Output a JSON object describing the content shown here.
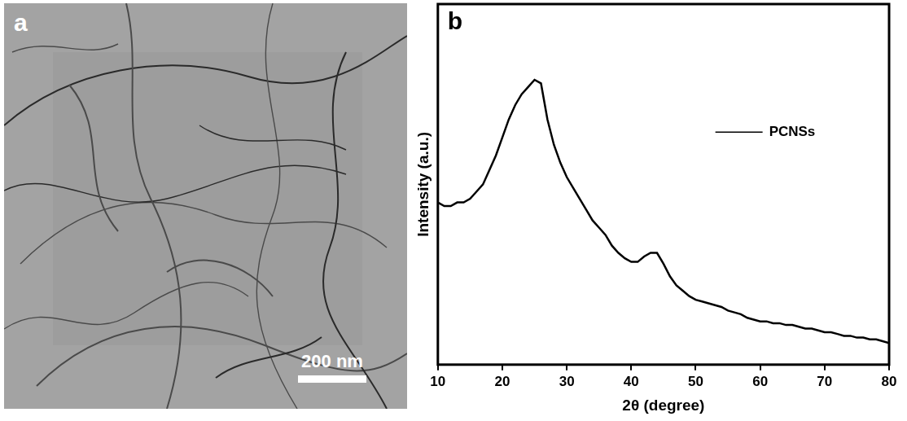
{
  "image_panel": {
    "panel_label": "a",
    "scale_bar_label": "200 nm"
  },
  "chart_data": {
    "type": "line",
    "panel_label": "b",
    "xlabel": "2θ (degree)",
    "ylabel": "Intensity (a.u.)",
    "x": [
      10,
      11,
      12,
      13,
      14,
      15,
      16,
      17,
      18,
      19,
      20,
      21,
      22,
      23,
      24,
      25,
      26,
      27,
      28,
      29,
      30,
      31,
      32,
      33,
      34,
      35,
      36,
      37,
      38,
      39,
      40,
      41,
      42,
      43,
      44,
      45,
      46,
      47,
      48,
      49,
      50,
      51,
      52,
      53,
      54,
      55,
      56,
      57,
      58,
      59,
      60,
      61,
      62,
      63,
      64,
      65,
      66,
      67,
      68,
      69,
      70,
      71,
      72,
      73,
      74,
      75,
      76,
      77,
      78,
      79,
      80
    ],
    "series": [
      {
        "name": "PCNSs",
        "color": "#000000",
        "line_style": "solid",
        "values": [
          45,
          44,
          44,
          45,
          45,
          46,
          48,
          50,
          54,
          58,
          63,
          68,
          72,
          75,
          77,
          79,
          78,
          68,
          61,
          56,
          52,
          49,
          46,
          43,
          40,
          38,
          36,
          33,
          31,
          29.5,
          28.5,
          28.5,
          30,
          31,
          31,
          28,
          24.5,
          22,
          20.5,
          19,
          18,
          17.5,
          17,
          16.5,
          16,
          15,
          14.5,
          14,
          13,
          12.5,
          12,
          12,
          11.5,
          11.5,
          11,
          11,
          10.5,
          10,
          10,
          9.5,
          9,
          9,
          8.5,
          8,
          8,
          7.5,
          7.5,
          7,
          7,
          6.5,
          6
        ]
      }
    ],
    "xlim": [
      10,
      80
    ],
    "xticks": [
      10,
      20,
      30,
      40,
      50,
      60,
      70,
      80
    ],
    "ylim": [
      0,
      100
    ],
    "yticks": [],
    "tick_labels": "x",
    "grid": false,
    "legend": "upper right"
  }
}
